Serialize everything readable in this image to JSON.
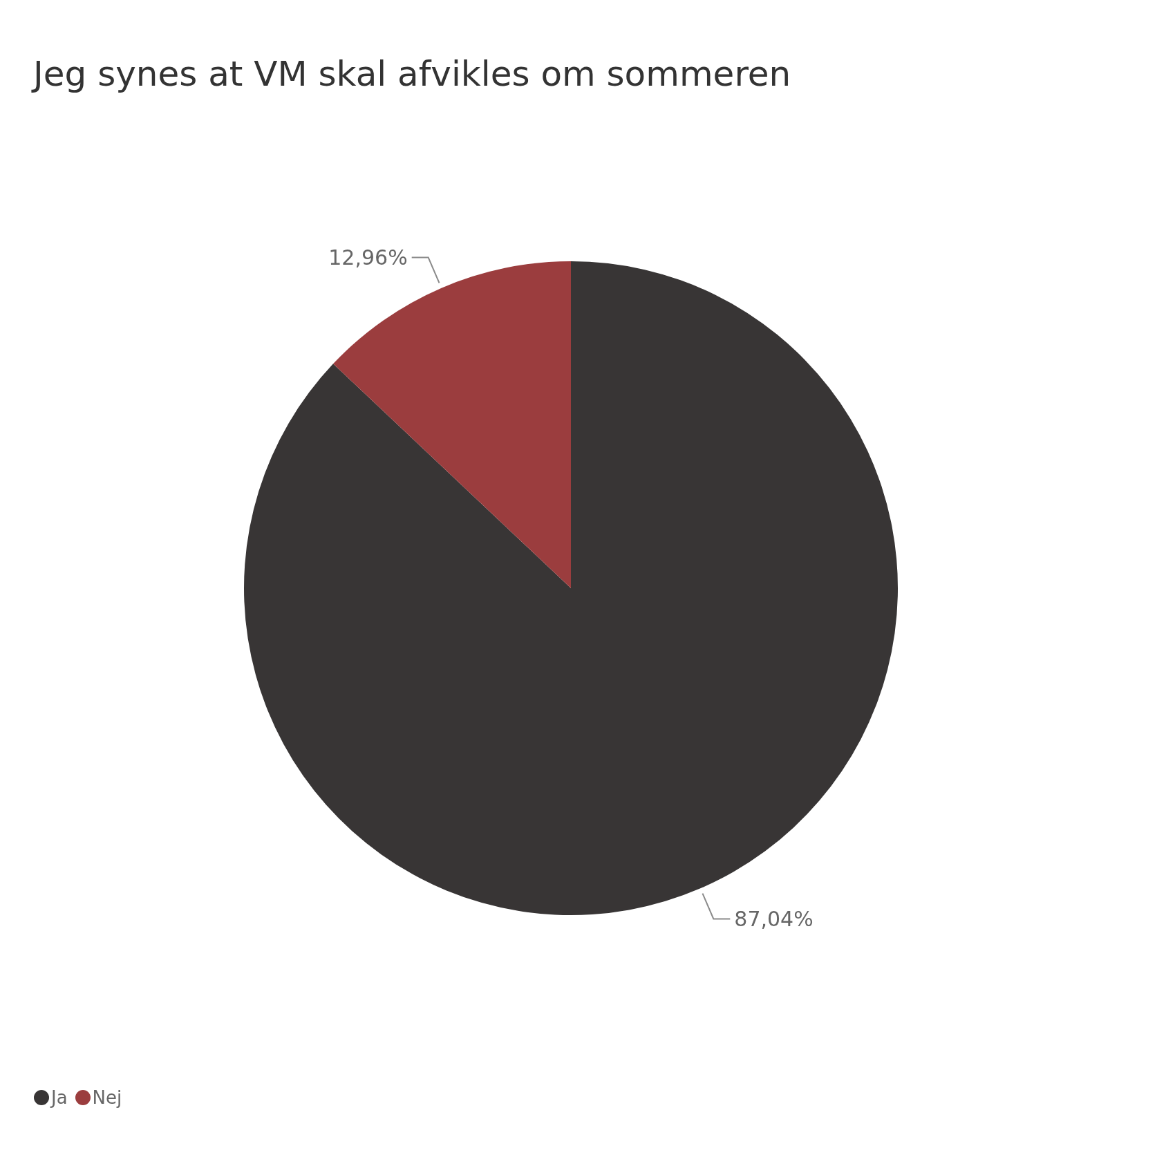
{
  "chart_data": {
    "type": "pie",
    "title": "Jeg synes at VM skal afvikles om sommeren",
    "categories": [
      "Ja",
      "Nej"
    ],
    "values": [
      87.04,
      12.96
    ],
    "colors": [
      "#383535",
      "#9b3d3e"
    ],
    "value_labels": [
      "87,04%",
      "12,96%"
    ],
    "legend": "bottom left"
  }
}
